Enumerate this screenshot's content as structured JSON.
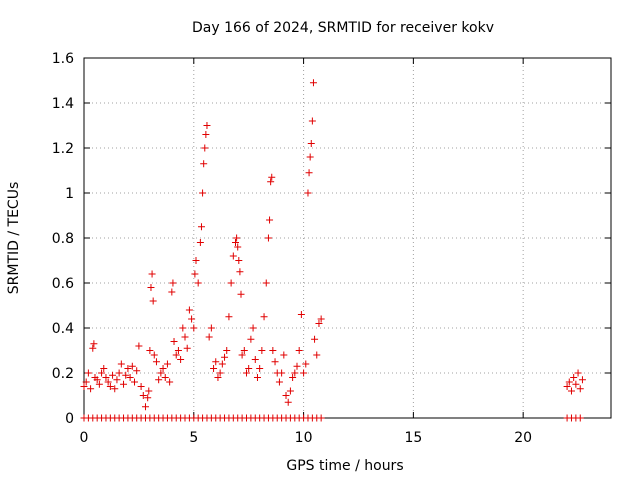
{
  "chart_data": {
    "type": "scatter",
    "title": "Day 166 of 2024, SRMTID for receiver kokv",
    "xlabel": "GPS time / hours",
    "ylabel": "SRMTID / TECUs",
    "xlim": [
      0,
      24
    ],
    "ylim": [
      0,
      1.6
    ],
    "xticks": [
      0,
      5,
      10,
      15,
      20
    ],
    "xtick_labels": [
      "0",
      "5",
      "10",
      "15",
      "20"
    ],
    "yticks": [
      0,
      0.2,
      0.4,
      0.6,
      0.8,
      1.0,
      1.2,
      1.4,
      1.6
    ],
    "ytick_labels": [
      "0",
      "0.2",
      "0.4",
      "0.6",
      "0.8",
      "1",
      "1.2",
      "1.4",
      "1.6"
    ],
    "grid": true,
    "marker": "plus",
    "marker_color": "#e00000",
    "series": [
      {
        "name": "SRMTID",
        "x": [
          0.0,
          0.1,
          0.2,
          0.3,
          0.4,
          0.45,
          0.5,
          0.6,
          0.7,
          0.8,
          0.9,
          1.0,
          1.1,
          1.2,
          1.3,
          1.4,
          1.5,
          1.6,
          1.7,
          1.8,
          1.9,
          2.0,
          2.1,
          2.2,
          2.3,
          2.4,
          2.5,
          2.6,
          2.7,
          2.8,
          2.9,
          2.95,
          3.0,
          3.05,
          3.1,
          3.15,
          3.2,
          3.3,
          3.4,
          3.5,
          3.6,
          3.7,
          3.8,
          3.9,
          4.0,
          4.05,
          4.1,
          4.2,
          4.3,
          4.4,
          4.5,
          4.6,
          4.7,
          4.8,
          4.9,
          5.0,
          5.05,
          5.1,
          5.2,
          5.3,
          5.35,
          5.4,
          5.45,
          5.5,
          5.55,
          5.6,
          5.7,
          5.8,
          5.9,
          6.0,
          6.1,
          6.2,
          6.3,
          6.4,
          6.5,
          6.6,
          6.7,
          6.8,
          6.9,
          6.95,
          7.0,
          7.05,
          7.1,
          7.15,
          7.2,
          7.3,
          7.4,
          7.5,
          7.6,
          7.7,
          7.8,
          7.9,
          8.0,
          8.1,
          8.2,
          8.3,
          8.4,
          8.45,
          8.5,
          8.55,
          8.6,
          8.7,
          8.8,
          8.9,
          9.0,
          9.1,
          9.2,
          9.3,
          9.4,
          9.5,
          9.6,
          9.7,
          9.8,
          9.9,
          10.0,
          10.1,
          10.2,
          10.25,
          10.3,
          10.35,
          10.4,
          10.45,
          10.5,
          10.6,
          10.7,
          10.8,
          22.0,
          22.1,
          22.2,
          22.3,
          22.4,
          22.5,
          22.6,
          22.7
        ],
        "y": [
          0.14,
          0.16,
          0.2,
          0.13,
          0.31,
          0.33,
          0.18,
          0.17,
          0.15,
          0.2,
          0.22,
          0.18,
          0.16,
          0.14,
          0.19,
          0.13,
          0.17,
          0.2,
          0.24,
          0.15,
          0.19,
          0.22,
          0.18,
          0.23,
          0.16,
          0.21,
          0.32,
          0.14,
          0.1,
          0.05,
          0.09,
          0.12,
          0.3,
          0.58,
          0.64,
          0.52,
          0.28,
          0.25,
          0.17,
          0.2,
          0.22,
          0.18,
          0.24,
          0.16,
          0.56,
          0.6,
          0.34,
          0.28,
          0.3,
          0.26,
          0.4,
          0.36,
          0.31,
          0.48,
          0.44,
          0.4,
          0.64,
          0.7,
          0.6,
          0.78,
          0.85,
          1.0,
          1.13,
          1.2,
          1.26,
          1.3,
          0.36,
          0.4,
          0.22,
          0.25,
          0.18,
          0.2,
          0.24,
          0.27,
          0.3,
          0.45,
          0.6,
          0.72,
          0.78,
          0.8,
          0.76,
          0.7,
          0.65,
          0.55,
          0.28,
          0.3,
          0.2,
          0.22,
          0.35,
          0.4,
          0.26,
          0.18,
          0.22,
          0.3,
          0.45,
          0.6,
          0.8,
          0.88,
          1.05,
          1.07,
          0.3,
          0.25,
          0.2,
          0.16,
          0.2,
          0.28,
          0.1,
          0.07,
          0.12,
          0.18,
          0.2,
          0.23,
          0.3,
          0.46,
          0.2,
          0.24,
          1.0,
          1.09,
          1.16,
          1.22,
          1.32,
          1.49,
          0.35,
          0.28,
          0.42,
          0.44,
          0.14,
          0.16,
          0.12,
          0.18,
          0.15,
          0.2,
          0.13,
          0.17
        ]
      },
      {
        "name": "zero values",
        "x": [
          0.0,
          0.2,
          0.4,
          0.6,
          0.8,
          1.0,
          1.2,
          1.4,
          1.6,
          1.8,
          2.0,
          2.2,
          2.4,
          2.6,
          2.8,
          3.0,
          3.2,
          3.4,
          3.6,
          3.8,
          4.0,
          4.2,
          4.4,
          4.6,
          4.8,
          5.0,
          5.2,
          5.4,
          5.6,
          5.8,
          6.0,
          6.2,
          6.4,
          6.6,
          6.8,
          7.0,
          7.2,
          7.4,
          7.6,
          7.8,
          8.0,
          8.2,
          8.4,
          8.6,
          8.8,
          9.0,
          9.2,
          9.4,
          9.6,
          9.8,
          10.0,
          10.2,
          10.4,
          10.6,
          10.8,
          22.0,
          22.2,
          22.4,
          22.6
        ],
        "y": [
          0,
          0,
          0,
          0,
          0,
          0,
          0,
          0,
          0,
          0,
          0,
          0,
          0,
          0,
          0,
          0,
          0,
          0,
          0,
          0,
          0,
          0,
          0,
          0,
          0,
          0,
          0,
          0,
          0,
          0,
          0,
          0,
          0,
          0,
          0,
          0,
          0,
          0,
          0,
          0,
          0,
          0,
          0,
          0,
          0,
          0,
          0,
          0,
          0,
          0,
          0,
          0,
          0,
          0,
          0,
          0,
          0,
          0,
          0
        ]
      }
    ]
  }
}
